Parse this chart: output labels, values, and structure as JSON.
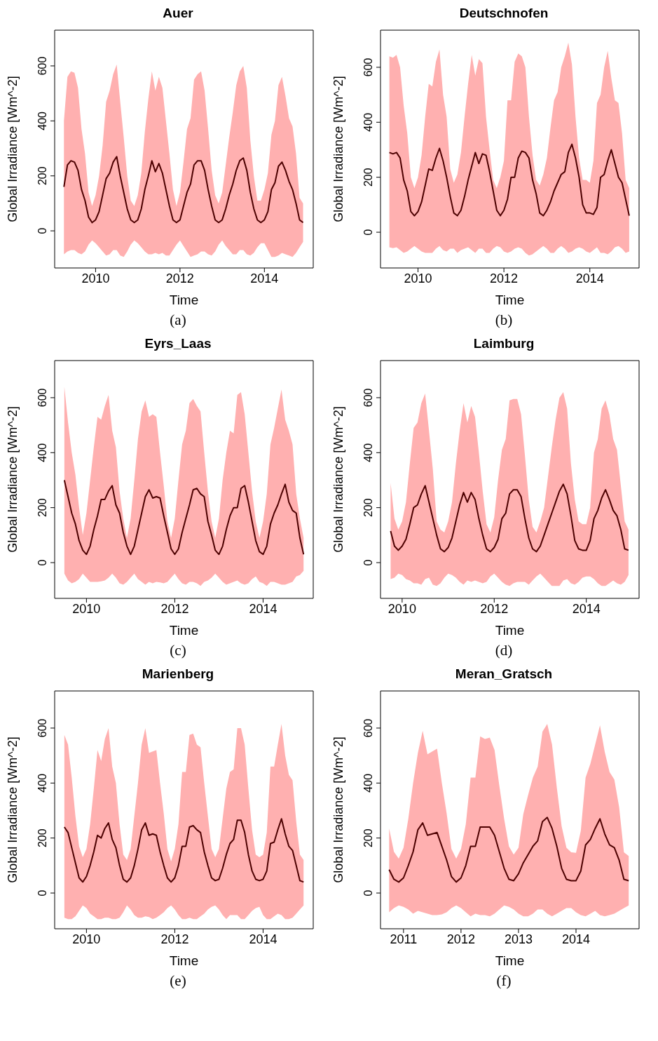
{
  "chart_data": [
    {
      "type": "line",
      "title": "Auer",
      "xlabel": "Time",
      "ylabel": "Global Irradiance [Wm^-2]",
      "annotations": [
        "(a)"
      ],
      "xlim": [
        "2009-01-12",
        "2015-02-28"
      ],
      "xticks": [
        "2010",
        "2012",
        "2014"
      ],
      "ylim": [
        -135,
        730
      ],
      "yticks": [
        0,
        200,
        400,
        600
      ],
      "x": [
        "2009-04",
        "2009-05",
        "2009-06",
        "2009-07",
        "2009-08",
        "2009-09",
        "2009-10",
        "2009-11",
        "2009-12",
        "2010-01",
        "2010-02",
        "2010-03",
        "2010-04",
        "2010-05",
        "2010-06",
        "2010-07",
        "2010-08",
        "2010-09",
        "2010-10",
        "2010-11",
        "2010-12",
        "2011-01",
        "2011-02",
        "2011-03",
        "2011-04",
        "2011-05",
        "2011-06",
        "2011-07",
        "2011-08",
        "2011-09",
        "2011-10",
        "2011-11",
        "2011-12",
        "2012-01",
        "2012-02",
        "2012-03",
        "2012-04",
        "2012-05",
        "2012-06",
        "2012-07",
        "2012-08",
        "2012-09",
        "2012-10",
        "2012-11",
        "2012-12",
        "2013-01",
        "2013-02",
        "2013-03",
        "2013-04",
        "2013-05",
        "2013-06",
        "2013-07",
        "2013-08",
        "2013-09",
        "2013-10",
        "2013-11",
        "2013-12",
        "2014-01",
        "2014-02",
        "2014-03",
        "2014-04",
        "2014-05",
        "2014-06",
        "2014-07",
        "2014-08",
        "2014-09",
        "2014-10",
        "2014-11",
        "2014-12"
      ],
      "series": [
        {
          "color": "#4d0000",
          "values": [
            160,
            240,
            255,
            250,
            220,
            150,
            110,
            50,
            30,
            40,
            70,
            130,
            190,
            210,
            250,
            270,
            200,
            140,
            80,
            40,
            30,
            40,
            80,
            150,
            200,
            255,
            215,
            245,
            210,
            150,
            90,
            40,
            30,
            40,
            90,
            140,
            170,
            240,
            255,
            255,
            220,
            150,
            90,
            40,
            30,
            40,
            80,
            130,
            170,
            220,
            255,
            265,
            220,
            140,
            80,
            40,
            30,
            40,
            70,
            150,
            175,
            235,
            250,
            220,
            180,
            150,
            100,
            40,
            30
          ],
          "lower": [
            -85,
            -75,
            -70,
            -70,
            -80,
            -85,
            -75,
            -50,
            -35,
            -45,
            -60,
            -75,
            -90,
            -85,
            -70,
            -70,
            -90,
            -95,
            -75,
            -50,
            -35,
            -45,
            -60,
            -75,
            -85,
            -85,
            -80,
            -85,
            -80,
            -90,
            -90,
            -70,
            -50,
            -35,
            -55,
            -75,
            -95,
            -90,
            -85,
            -75,
            -75,
            -85,
            -90,
            -75,
            -50,
            -35,
            -55,
            -70,
            -85,
            -85,
            -70,
            -70,
            -85,
            -90,
            -80,
            -60,
            -45,
            -45,
            -70,
            -95,
            -95,
            -90,
            -80,
            -85,
            -90,
            -95,
            -80,
            -60,
            -40
          ],
          "upper": [
            400,
            560,
            580,
            575,
            520,
            370,
            280,
            140,
            90,
            130,
            200,
            310,
            470,
            510,
            570,
            605,
            470,
            340,
            200,
            110,
            90,
            130,
            210,
            360,
            480,
            580,
            510,
            560,
            520,
            400,
            280,
            150,
            90,
            140,
            250,
            370,
            410,
            550,
            570,
            580,
            510,
            370,
            220,
            130,
            100,
            140,
            240,
            340,
            430,
            530,
            580,
            600,
            520,
            330,
            200,
            110,
            110,
            150,
            210,
            350,
            400,
            530,
            560,
            490,
            410,
            380,
            280,
            120,
            100
          ]
        }
      ]
    },
    {
      "type": "line",
      "title": "Deutschnofen",
      "xlabel": "Time",
      "ylabel": "Global Irradiance [Wm^-2]",
      "annotations": [
        "(b)"
      ],
      "xlim": [
        "2009-02-17",
        "2015-02-24"
      ],
      "xticks": [
        "2010",
        "2012",
        "2014"
      ],
      "ylim": [
        -130,
        735
      ],
      "yticks": [
        0,
        200,
        400,
        600
      ],
      "x": [
        "2009-05",
        "2009-06",
        "2009-07",
        "2009-08",
        "2009-09",
        "2009-10",
        "2009-11",
        "2009-12",
        "2010-01",
        "2010-02",
        "2010-03",
        "2010-04",
        "2010-05",
        "2010-06",
        "2010-07",
        "2010-08",
        "2010-09",
        "2010-10",
        "2010-11",
        "2010-12",
        "2011-01",
        "2011-02",
        "2011-03",
        "2011-04",
        "2011-05",
        "2011-06",
        "2011-07",
        "2011-08",
        "2011-09",
        "2011-10",
        "2011-11",
        "2011-12",
        "2012-01",
        "2012-02",
        "2012-03",
        "2012-04",
        "2012-05",
        "2012-06",
        "2012-07",
        "2012-08",
        "2012-09",
        "2012-10",
        "2012-11",
        "2012-12",
        "2013-01",
        "2013-02",
        "2013-03",
        "2013-04",
        "2013-05",
        "2013-06",
        "2013-07",
        "2013-08",
        "2013-09",
        "2013-10",
        "2013-11",
        "2013-12",
        "2014-01",
        "2014-02",
        "2014-03",
        "2014-04",
        "2014-05",
        "2014-06",
        "2014-07",
        "2014-08",
        "2014-09",
        "2014-10",
        "2014-11",
        "2014-12"
      ],
      "series": [
        {
          "color": "#4d0000",
          "values": [
            290,
            285,
            290,
            270,
            190,
            150,
            75,
            60,
            75,
            110,
            170,
            230,
            225,
            270,
            305,
            260,
            200,
            130,
            70,
            60,
            80,
            130,
            190,
            240,
            290,
            250,
            285,
            280,
            220,
            150,
            80,
            60,
            80,
            120,
            200,
            200,
            270,
            295,
            290,
            270,
            190,
            140,
            70,
            60,
            80,
            110,
            150,
            180,
            210,
            220,
            290,
            320,
            270,
            200,
            100,
            70,
            70,
            65,
            90,
            200,
            210,
            260,
            300,
            250,
            200,
            180,
            120,
            60
          ],
          "lower": [
            -55,
            -58,
            -55,
            -65,
            -75,
            -70,
            -60,
            -50,
            -60,
            -70,
            -75,
            -75,
            -75,
            -60,
            -50,
            -65,
            -70,
            -60,
            -60,
            -75,
            -65,
            -60,
            -55,
            -65,
            -75,
            -60,
            -60,
            -75,
            -75,
            -60,
            -50,
            -55,
            -70,
            -75,
            -70,
            -60,
            -55,
            -60,
            -75,
            -85,
            -80,
            -70,
            -60,
            -50,
            -60,
            -75,
            -75,
            -60,
            -50,
            -60,
            -75,
            -70,
            -60,
            -55,
            -60,
            -70,
            -75,
            -65,
            -55,
            -75,
            -75,
            -80,
            -70,
            -55,
            -50,
            -60,
            -75,
            -70
          ],
          "upper": [
            640,
            635,
            645,
            600,
            460,
            360,
            200,
            160,
            200,
            280,
            420,
            540,
            530,
            620,
            665,
            500,
            420,
            230,
            180,
            210,
            290,
            420,
            540,
            645,
            570,
            630,
            615,
            420,
            300,
            190,
            160,
            200,
            260,
            480,
            480,
            620,
            650,
            640,
            600,
            420,
            280,
            190,
            170,
            210,
            270,
            380,
            480,
            510,
            600,
            640,
            690,
            610,
            420,
            270,
            190,
            190,
            180,
            260,
            470,
            500,
            600,
            660,
            560,
            480,
            470,
            360,
            190,
            160
          ]
        }
      ]
    },
    {
      "type": "line",
      "title": "Eyrs_Laas",
      "xlabel": "Time",
      "ylabel": "Global Irradiance [Wm^-2]",
      "annotations": [
        "(c)"
      ],
      "xlim": [
        "2009-04-12",
        "2015-02-20"
      ],
      "xticks": [
        "2010",
        "2012",
        "2014"
      ],
      "ylim": [
        -130,
        735
      ],
      "yticks": [
        0,
        200,
        400,
        600
      ],
      "x": [
        "2009-07",
        "2009-08",
        "2009-09",
        "2009-10",
        "2009-11",
        "2009-12",
        "2010-01",
        "2010-02",
        "2010-03",
        "2010-04",
        "2010-05",
        "2010-06",
        "2010-07",
        "2010-08",
        "2010-09",
        "2010-10",
        "2010-11",
        "2010-12",
        "2011-01",
        "2011-02",
        "2011-03",
        "2011-04",
        "2011-05",
        "2011-06",
        "2011-07",
        "2011-08",
        "2011-09",
        "2011-10",
        "2011-11",
        "2011-12",
        "2012-01",
        "2012-02",
        "2012-03",
        "2012-04",
        "2012-05",
        "2012-06",
        "2012-07",
        "2012-08",
        "2012-09",
        "2012-10",
        "2012-11",
        "2012-12",
        "2013-01",
        "2013-02",
        "2013-03",
        "2013-04",
        "2013-05",
        "2013-06",
        "2013-07",
        "2013-08",
        "2013-09",
        "2013-10",
        "2013-11",
        "2013-12",
        "2014-01",
        "2014-02",
        "2014-03",
        "2014-04",
        "2014-05",
        "2014-06",
        "2014-07",
        "2014-08",
        "2014-09",
        "2014-10",
        "2014-11",
        "2014-12"
      ],
      "series": [
        {
          "color": "#4d0000",
          "values": [
            300,
            240,
            180,
            140,
            80,
            45,
            30,
            60,
            120,
            170,
            230,
            230,
            260,
            280,
            210,
            180,
            110,
            60,
            30,
            60,
            120,
            180,
            240,
            265,
            235,
            240,
            235,
            170,
            110,
            50,
            30,
            50,
            110,
            160,
            210,
            265,
            270,
            250,
            240,
            150,
            100,
            45,
            30,
            60,
            120,
            170,
            200,
            200,
            270,
            280,
            220,
            150,
            80,
            40,
            30,
            60,
            140,
            180,
            210,
            250,
            285,
            220,
            190,
            180,
            90,
            30
          ],
          "lower": [
            -40,
            -65,
            -75,
            -70,
            -60,
            -40,
            -55,
            -70,
            -70,
            -70,
            -68,
            -65,
            -55,
            -40,
            -55,
            -75,
            -80,
            -70,
            -55,
            -40,
            -60,
            -70,
            -80,
            -70,
            -75,
            -70,
            -72,
            -75,
            -70,
            -55,
            -40,
            -60,
            -75,
            -80,
            -70,
            -70,
            -75,
            -85,
            -70,
            -65,
            -55,
            -40,
            -55,
            -70,
            -80,
            -75,
            -70,
            -65,
            -75,
            -80,
            -75,
            -60,
            -50,
            -70,
            -75,
            -85,
            -70,
            -70,
            -75,
            -80,
            -80,
            -75,
            -70,
            -50,
            -45,
            -30
          ],
          "upper": [
            640,
            510,
            400,
            320,
            200,
            100,
            180,
            300,
            420,
            530,
            520,
            570,
            610,
            480,
            420,
            260,
            160,
            90,
            160,
            300,
            450,
            550,
            590,
            530,
            540,
            530,
            400,
            280,
            150,
            90,
            160,
            300,
            430,
            480,
            580,
            595,
            570,
            550,
            400,
            260,
            150,
            90,
            160,
            300,
            400,
            480,
            470,
            610,
            620,
            540,
            400,
            260,
            150,
            90,
            150,
            250,
            430,
            490,
            560,
            630,
            520,
            480,
            430,
            250,
            160,
            90
          ]
        }
      ]
    },
    {
      "type": "line",
      "title": "Laimburg",
      "xlabel": "Time",
      "ylabel": "Global Irradiance [Wm^-2]",
      "annotations": [
        "(d)"
      ],
      "xlim": [
        "2009-07-12",
        "2015-02-24"
      ],
      "xticks": [
        "2010",
        "2012",
        "2014"
      ],
      "ylim": [
        -130,
        735
      ],
      "yticks": [
        0,
        200,
        400,
        600
      ],
      "x": [
        "2009-10",
        "2009-11",
        "2009-12",
        "2010-01",
        "2010-02",
        "2010-03",
        "2010-04",
        "2010-05",
        "2010-06",
        "2010-07",
        "2010-08",
        "2010-09",
        "2010-10",
        "2010-11",
        "2010-12",
        "2011-01",
        "2011-02",
        "2011-03",
        "2011-04",
        "2011-05",
        "2011-06",
        "2011-07",
        "2011-08",
        "2011-09",
        "2011-10",
        "2011-11",
        "2011-12",
        "2012-01",
        "2012-02",
        "2012-03",
        "2012-04",
        "2012-05",
        "2012-06",
        "2012-07",
        "2012-08",
        "2012-09",
        "2012-10",
        "2012-11",
        "2012-12",
        "2013-01",
        "2013-02",
        "2013-03",
        "2013-04",
        "2013-05",
        "2013-06",
        "2013-07",
        "2013-08",
        "2013-09",
        "2013-10",
        "2013-11",
        "2013-12",
        "2014-01",
        "2014-02",
        "2014-03",
        "2014-04",
        "2014-05",
        "2014-06",
        "2014-07",
        "2014-08",
        "2014-09",
        "2014-10",
        "2014-11",
        "2014-12"
      ],
      "series": [
        {
          "color": "#4d0000",
          "values": [
            115,
            60,
            45,
            60,
            85,
            140,
            200,
            210,
            250,
            280,
            220,
            160,
            100,
            50,
            40,
            55,
            90,
            150,
            210,
            255,
            220,
            255,
            230,
            160,
            100,
            50,
            40,
            55,
            85,
            160,
            180,
            250,
            265,
            265,
            240,
            160,
            90,
            50,
            40,
            60,
            100,
            140,
            180,
            220,
            260,
            285,
            250,
            170,
            80,
            50,
            45,
            45,
            80,
            160,
            190,
            235,
            265,
            230,
            190,
            170,
            120,
            50,
            45
          ],
          "lower": [
            -60,
            -55,
            -40,
            -45,
            -60,
            -65,
            -75,
            -75,
            -80,
            -60,
            -55,
            -80,
            -85,
            -75,
            -55,
            -40,
            -45,
            -55,
            -70,
            -80,
            -65,
            -70,
            -65,
            -70,
            -75,
            -70,
            -50,
            -40,
            -55,
            -70,
            -80,
            -85,
            -75,
            -70,
            -70,
            -70,
            -80,
            -65,
            -50,
            -40,
            -55,
            -70,
            -85,
            -85,
            -85,
            -65,
            -60,
            -75,
            -80,
            -70,
            -55,
            -50,
            -50,
            -60,
            -75,
            -85,
            -85,
            -75,
            -65,
            -75,
            -80,
            -70,
            -45
          ],
          "upper": [
            290,
            160,
            120,
            150,
            220,
            360,
            490,
            510,
            580,
            615,
            480,
            340,
            150,
            120,
            110,
            150,
            220,
            360,
            480,
            580,
            510,
            570,
            530,
            400,
            260,
            140,
            110,
            165,
            300,
            410,
            450,
            590,
            595,
            595,
            540,
            390,
            230,
            130,
            110,
            150,
            200,
            310,
            420,
            520,
            600,
            620,
            560,
            360,
            230,
            150,
            140,
            140,
            200,
            400,
            450,
            560,
            590,
            540,
            450,
            410,
            280,
            150,
            120
          ]
        }
      ]
    },
    {
      "type": "line",
      "title": "Marienberg",
      "xlabel": "Time",
      "ylabel": "Global Irradiance [Wm^-2]",
      "annotations": [
        "(e)"
      ],
      "xlim": [
        "2009-04-12",
        "2015-02-20"
      ],
      "xticks": [
        "2010",
        "2012",
        "2014"
      ],
      "ylim": [
        -130,
        735
      ],
      "yticks": [
        0,
        200,
        400,
        600
      ],
      "x": [
        "2009-07",
        "2009-08",
        "2009-09",
        "2009-10",
        "2009-11",
        "2009-12",
        "2010-01",
        "2010-02",
        "2010-03",
        "2010-04",
        "2010-05",
        "2010-06",
        "2010-07",
        "2010-08",
        "2010-09",
        "2010-10",
        "2010-11",
        "2010-12",
        "2011-01",
        "2011-02",
        "2011-03",
        "2011-04",
        "2011-05",
        "2011-06",
        "2011-07",
        "2011-08",
        "2011-09",
        "2011-10",
        "2011-11",
        "2011-12",
        "2012-01",
        "2012-02",
        "2012-03",
        "2012-04",
        "2012-05",
        "2012-06",
        "2012-07",
        "2012-08",
        "2012-09",
        "2012-10",
        "2012-11",
        "2012-12",
        "2013-01",
        "2013-02",
        "2013-03",
        "2013-04",
        "2013-05",
        "2013-06",
        "2013-07",
        "2013-08",
        "2013-09",
        "2013-10",
        "2013-11",
        "2013-12",
        "2014-01",
        "2014-02",
        "2014-03",
        "2014-04",
        "2014-05",
        "2014-06",
        "2014-07",
        "2014-08",
        "2014-09",
        "2014-10",
        "2014-11",
        "2014-12"
      ],
      "series": [
        {
          "color": "#4d0000",
          "values": [
            240,
            220,
            165,
            110,
            55,
            40,
            60,
            100,
            150,
            210,
            200,
            235,
            255,
            195,
            165,
            100,
            50,
            40,
            55,
            100,
            160,
            230,
            255,
            210,
            215,
            210,
            150,
            100,
            55,
            40,
            55,
            100,
            170,
            170,
            240,
            245,
            230,
            220,
            150,
            100,
            55,
            45,
            50,
            90,
            140,
            180,
            195,
            265,
            265,
            220,
            140,
            80,
            50,
            45,
            50,
            80,
            180,
            185,
            230,
            270,
            215,
            170,
            155,
            100,
            45,
            40
          ],
          "lower": [
            -90,
            -95,
            -95,
            -85,
            -65,
            -45,
            -55,
            -75,
            -85,
            -95,
            -95,
            -90,
            -90,
            -95,
            -95,
            -90,
            -70,
            -45,
            -60,
            -80,
            -90,
            -90,
            -85,
            -87,
            -95,
            -90,
            -80,
            -70,
            -55,
            -45,
            -60,
            -80,
            -95,
            -95,
            -90,
            -95,
            -95,
            -85,
            -75,
            -60,
            -50,
            -45,
            -60,
            -80,
            -95,
            -80,
            -80,
            -80,
            -95,
            -95,
            -80,
            -65,
            -55,
            -50,
            -80,
            -95,
            -95,
            -85,
            -75,
            -80,
            -95,
            -95,
            -90,
            -75,
            -60,
            -45
          ],
          "upper": [
            575,
            540,
            420,
            280,
            170,
            130,
            160,
            250,
            380,
            520,
            480,
            560,
            600,
            460,
            400,
            250,
            140,
            120,
            160,
            280,
            400,
            540,
            600,
            510,
            515,
            520,
            400,
            290,
            160,
            115,
            160,
            250,
            440,
            440,
            575,
            580,
            540,
            530,
            400,
            280,
            160,
            130,
            160,
            270,
            380,
            440,
            450,
            600,
            600,
            540,
            380,
            230,
            140,
            130,
            140,
            220,
            460,
            460,
            540,
            615,
            500,
            430,
            410,
            260,
            140,
            120
          ]
        }
      ]
    },
    {
      "type": "line",
      "title": "Meran_Gratsch",
      "xlabel": "Time",
      "ylabel": "Global Irradiance [Wm^-2]",
      "annotations": [
        "(f)"
      ],
      "xlim": [
        "2010-08-07",
        "2015-02-06"
      ],
      "xticks": [
        "2011",
        "2012",
        "2013",
        "2014"
      ],
      "ylim": [
        -130,
        735
      ],
      "yticks": [
        0,
        200,
        400,
        600
      ],
      "x": [
        "2010-10",
        "2010-11",
        "2010-12",
        "2011-01",
        "2011-02",
        "2011-03",
        "2011-04",
        "2011-05",
        "2011-06",
        "2011-07",
        "2011-08",
        "2011-09",
        "2011-10",
        "2011-11",
        "2011-12",
        "2012-01",
        "2012-02",
        "2012-03",
        "2012-04",
        "2012-05",
        "2012-06",
        "2012-07",
        "2012-08",
        "2012-09",
        "2012-10",
        "2012-11",
        "2012-12",
        "2013-01",
        "2013-02",
        "2013-03",
        "2013-04",
        "2013-05",
        "2013-06",
        "2013-07",
        "2013-08",
        "2013-09",
        "2013-10",
        "2013-11",
        "2013-12",
        "2014-01",
        "2014-02",
        "2014-03",
        "2014-04",
        "2014-05",
        "2014-06",
        "2014-07",
        "2014-08",
        "2014-09",
        "2014-10",
        "2014-11",
        "2014-12"
      ],
      "series": [
        {
          "color": "#4d0000",
          "values": [
            85,
            50,
            40,
            55,
            100,
            150,
            230,
            255,
            210,
            215,
            220,
            170,
            120,
            60,
            40,
            55,
            100,
            170,
            170,
            240,
            240,
            240,
            210,
            150,
            90,
            50,
            45,
            70,
            110,
            140,
            170,
            190,
            260,
            275,
            235,
            170,
            90,
            50,
            45,
            45,
            80,
            175,
            195,
            235,
            270,
            215,
            175,
            165,
            120,
            50,
            45
          ],
          "lower": [
            -70,
            -55,
            -45,
            -50,
            -60,
            -75,
            -65,
            -70,
            -75,
            -80,
            -80,
            -78,
            -70,
            -55,
            -45,
            -55,
            -70,
            -85,
            -75,
            -80,
            -80,
            -85,
            -75,
            -60,
            -45,
            -50,
            -60,
            -75,
            -85,
            -85,
            -75,
            -60,
            -60,
            -75,
            -85,
            -75,
            -65,
            -55,
            -55,
            -70,
            -80,
            -85,
            -75,
            -65,
            -80,
            -85,
            -80,
            -75,
            -65,
            -55,
            -45
          ],
          "upper": [
            235,
            150,
            125,
            165,
            270,
            400,
            510,
            590,
            505,
            515,
            525,
            400,
            290,
            160,
            125,
            160,
            250,
            420,
            420,
            570,
            560,
            565,
            520,
            390,
            270,
            170,
            140,
            165,
            287,
            356,
            420,
            460,
            587,
            615,
            540,
            383,
            243,
            165,
            148,
            146,
            226,
            420,
            470,
            540,
            610,
            513,
            440,
            413,
            313,
            148,
            135
          ]
        }
      ]
    }
  ]
}
